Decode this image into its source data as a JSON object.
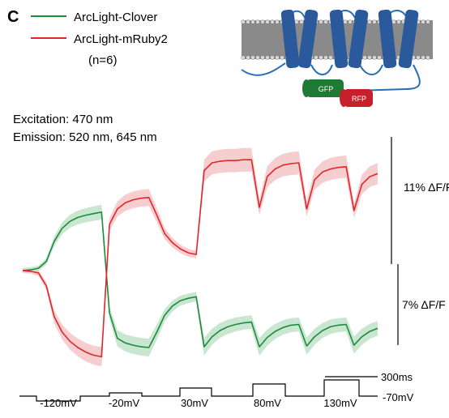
{
  "panel_label": "C",
  "legend": {
    "items": [
      {
        "label": "ArcLight-Clover",
        "color": "#1e8a3c"
      },
      {
        "label": "ArcLight-mRuby2",
        "color": "#e0262a"
      }
    ],
    "n_note": "(n=6)"
  },
  "schematic": {
    "gfp_label": "GFP",
    "rfp_label": "RFP",
    "helix_color": "#2a5a9c",
    "membrane_color": "#8a8a8a",
    "gfp_color": "#1f7a34",
    "rfp_color": "#c8202a"
  },
  "conditions": {
    "excitation": "Excitation: 470 nm",
    "emission": "Emission: 520 nm, 645 nm"
  },
  "scale_bars": {
    "red": "11% ΔF/F",
    "green": "7% ΔF/F",
    "time": "300ms"
  },
  "protocol": {
    "holding_label": "-70mV",
    "steps": [
      "-120mV",
      "-20mV",
      "30mV",
      "80mV",
      "130mV"
    ]
  },
  "chart_data": {
    "type": "line",
    "series": [
      {
        "name": "ArcLight-Clover",
        "color": "#1e8a3c",
        "band_color": "#bfe3c8",
        "values": [
          0,
          1,
          3,
          12,
          38,
          55,
          64,
          69,
          72,
          74,
          76,
          -55,
          -88,
          -94,
          -97,
          -99,
          -100,
          -80,
          -58,
          -46,
          -39,
          -36,
          -34,
          -99,
          -86,
          -78,
          -73,
          -70,
          -68,
          -67,
          -99,
          -87,
          -79,
          -74,
          -71,
          -70,
          -98,
          -86,
          -78,
          -73,
          -71,
          -70,
          -97,
          -86,
          -79,
          -75
        ]
      },
      {
        "name": "ArcLight-mRuby2",
        "color": "#e0262a",
        "band_color": "#f6c6c8",
        "values": [
          0,
          -1,
          -3,
          -20,
          -60,
          -80,
          -92,
          -100,
          -106,
          -110,
          -112,
          60,
          80,
          88,
          92,
          94,
          95,
          72,
          48,
          36,
          28,
          23,
          21,
          130,
          140,
          142,
          143,
          143,
          144,
          144,
          82,
          122,
          132,
          137,
          139,
          140,
          80,
          118,
          128,
          132,
          134,
          135,
          78,
          112,
          122,
          126
        ]
      }
    ]
  }
}
